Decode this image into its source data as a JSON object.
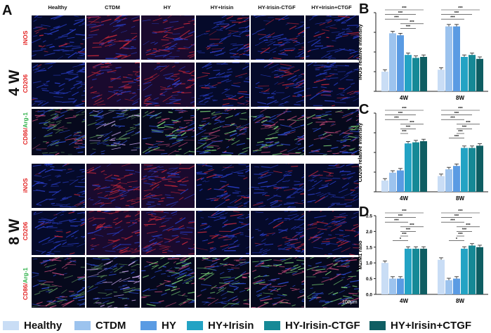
{
  "panels": {
    "a": "A",
    "b": "B",
    "c": "C",
    "d": "D"
  },
  "image_grid": {
    "columns": [
      "Healthy",
      "CTDM",
      "HY",
      "HY+Irisin",
      "HY-Irisin-CTGF",
      "HY+Irisin+CTGF"
    ],
    "weeks": [
      "4 W",
      "8 W"
    ],
    "rows": [
      {
        "label": "iNOS",
        "tone": "blue-red"
      },
      {
        "label": "CD206",
        "tone": "blue-red"
      },
      {
        "label_red": "CD86",
        "label_slash": "/",
        "label_green": "Arg-1",
        "tone": "merge"
      }
    ],
    "scale_bar": "100μm"
  },
  "legend": {
    "items": [
      {
        "label": "Healthy",
        "color": "#c9ddf5"
      },
      {
        "label": "CTDM",
        "color": "#9cc3ee"
      },
      {
        "label": "HY",
        "color": "#5a9be3"
      },
      {
        "label": "HY+Irisin",
        "color": "#23a3c4"
      },
      {
        "label": "HY-Irisin-CTGF",
        "color": "#168996"
      },
      {
        "label": "HY+Irisin+CTGF",
        "color": "#0f5e63"
      }
    ]
  },
  "chart_data": [
    {
      "panel": "B",
      "type": "bar",
      "ylabel": "iNOS relative intensity",
      "categories": [
        "4W",
        "8W"
      ],
      "ylim": [
        0,
        4
      ],
      "yticks": [],
      "grid": false,
      "series": [
        {
          "name": "Healthy",
          "values": [
            1.0,
            1.1
          ]
        },
        {
          "name": "CTDM",
          "values": [
            2.95,
            3.3
          ]
        },
        {
          "name": "HY",
          "values": [
            2.85,
            3.3
          ]
        },
        {
          "name": "HY+Irisin",
          "values": [
            1.85,
            1.75
          ]
        },
        {
          "name": "HY-Irisin-CTGF",
          "values": [
            1.7,
            1.85
          ]
        },
        {
          "name": "HY+Irisin+CTGF",
          "values": [
            1.75,
            1.65
          ]
        }
      ],
      "significance": [
        "***",
        "***",
        "***",
        "***",
        "***",
        "***",
        "***"
      ]
    },
    {
      "panel": "C",
      "type": "bar",
      "ylabel": "CD206 relative intensity",
      "categories": [
        "4W",
        "8W"
      ],
      "ylim": [
        0,
        3.5
      ],
      "yticks": [],
      "grid": false,
      "series": [
        {
          "name": "Healthy",
          "values": [
            0.5,
            0.7
          ]
        },
        {
          "name": "CTDM",
          "values": [
            0.85,
            1.0
          ]
        },
        {
          "name": "HY",
          "values": [
            0.95,
            1.15
          ]
        },
        {
          "name": "HY+Irisin",
          "values": [
            2.15,
            1.95
          ]
        },
        {
          "name": "HY-Irisin-CTGF",
          "values": [
            2.2,
            1.95
          ]
        },
        {
          "name": "HY+Irisin+CTGF",
          "values": [
            2.25,
            2.05
          ]
        }
      ],
      "significance": [
        "***",
        "***",
        "***",
        "***",
        "***",
        "***",
        "***"
      ]
    },
    {
      "panel": "D",
      "type": "bar",
      "ylabel": "M2/M1 ratio",
      "categories": [
        "4W",
        "8W"
      ],
      "ylim": [
        0,
        2.5
      ],
      "yticks": [
        "0.0",
        "0.5",
        "1.0",
        "1.5",
        "2.0",
        "2.5"
      ],
      "grid": false,
      "series": [
        {
          "name": "Healthy",
          "values": [
            1.0,
            1.1
          ]
        },
        {
          "name": "CTDM",
          "values": [
            0.5,
            0.45
          ]
        },
        {
          "name": "HY",
          "values": [
            0.5,
            0.5
          ]
        },
        {
          "name": "HY+Irisin",
          "values": [
            1.45,
            1.45
          ]
        },
        {
          "name": "HY-Irisin-CTGF",
          "values": [
            1.45,
            1.55
          ]
        },
        {
          "name": "HY+Irisin+CTGF",
          "values": [
            1.45,
            1.5
          ]
        }
      ],
      "significance": [
        "***",
        "***",
        "***",
        "***",
        "***",
        "***",
        "*"
      ]
    }
  ]
}
